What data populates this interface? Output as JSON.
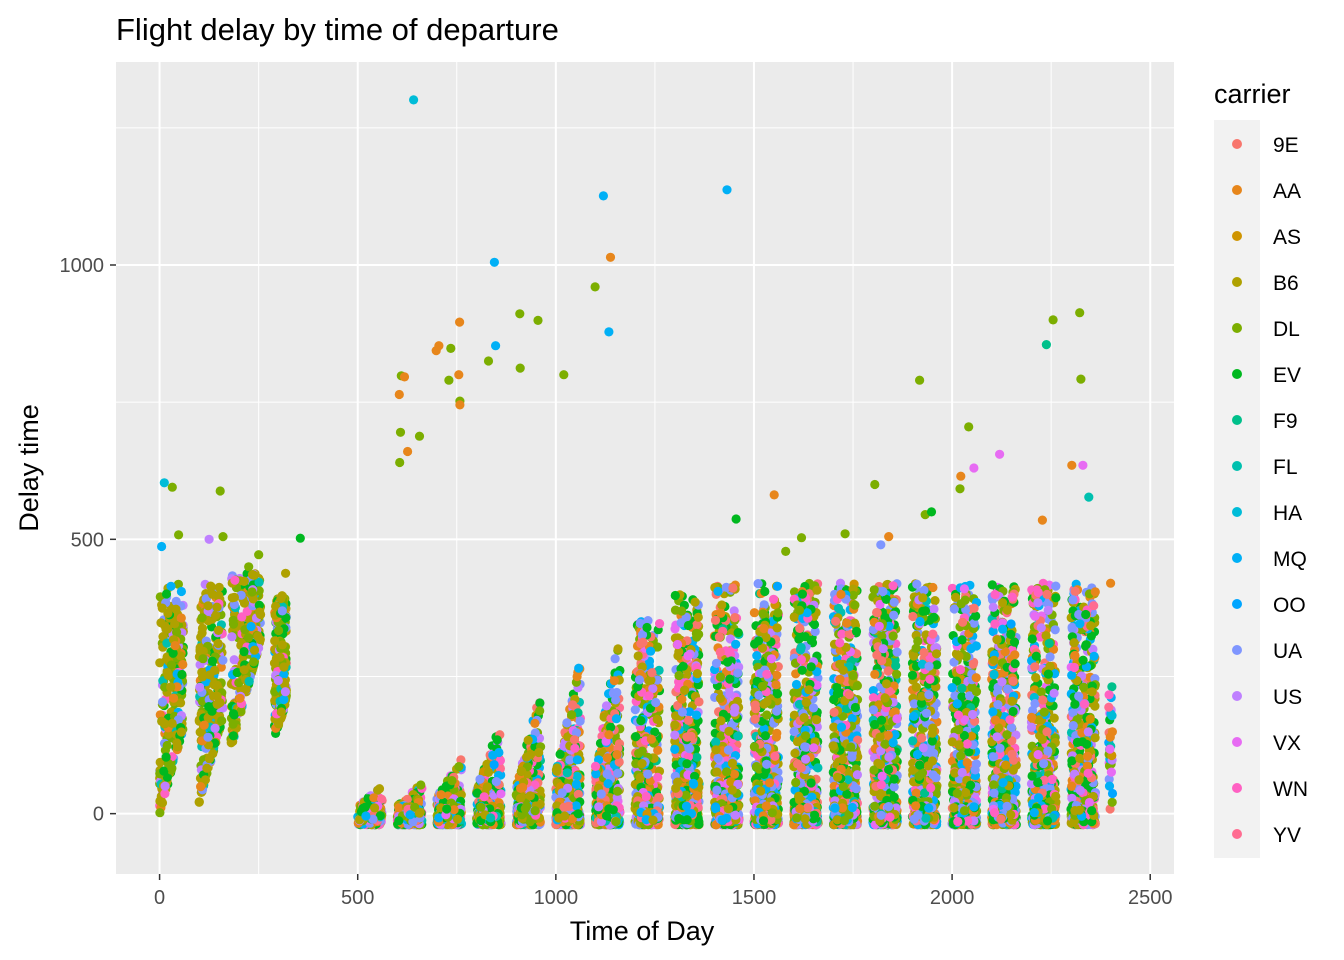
{
  "chart_data": {
    "type": "scatter",
    "title": "Flight delay by time of departure",
    "xlabel": "Time of Day",
    "ylabel": "Delay time",
    "xlim": [
      -110,
      2560
    ],
    "ylim": [
      -110,
      1370
    ],
    "x_ticks": [
      0,
      500,
      1000,
      1500,
      2000,
      2500
    ],
    "y_ticks": [
      0,
      500,
      1000
    ],
    "grid": true,
    "legend": {
      "title": "carrier",
      "placement": "right",
      "entries": [
        "9E",
        "AA",
        "AS",
        "B6",
        "DL",
        "EV",
        "F9",
        "FL",
        "HA",
        "MQ",
        "OO",
        "UA",
        "US",
        "VX",
        "WN",
        "YV"
      ]
    },
    "colors": {
      "9E": "#F8766D",
      "AA": "#E7861B",
      "AS": "#CF9400",
      "B6": "#AFA100",
      "DL": "#7CAE00",
      "EV": "#00B81F",
      "F9": "#00C08B",
      "FL": "#00C0AF",
      "HA": "#00BCD8",
      "MQ": "#00B0F6",
      "OO": "#00A5FF",
      "UA": "#7F96FF",
      "US": "#BF80FF",
      "VX": "#E76BF3",
      "WN": "#FF61C3",
      "YV": "#FF6C91"
    },
    "outliers": [
      {
        "x": 641,
        "y": 1301,
        "carrier": "HA"
      },
      {
        "x": 1120,
        "y": 1126,
        "carrier": "MQ"
      },
      {
        "x": 1432,
        "y": 1137,
        "carrier": "MQ"
      },
      {
        "x": 845,
        "y": 1005,
        "carrier": "MQ"
      },
      {
        "x": 1138,
        "y": 1014,
        "carrier": "AA"
      },
      {
        "x": 1099,
        "y": 960,
        "carrier": "DL"
      },
      {
        "x": 909,
        "y": 911,
        "carrier": "DL"
      },
      {
        "x": 955,
        "y": 899,
        "carrier": "DL"
      },
      {
        "x": 757,
        "y": 896,
        "carrier": "AA"
      },
      {
        "x": 848,
        "y": 853,
        "carrier": "MQ"
      },
      {
        "x": 1134,
        "y": 878,
        "carrier": "MQ"
      },
      {
        "x": 705,
        "y": 853,
        "carrier": "AA"
      },
      {
        "x": 698,
        "y": 844,
        "carrier": "AA"
      },
      {
        "x": 735,
        "y": 848,
        "carrier": "DL"
      },
      {
        "x": 830,
        "y": 825,
        "carrier": "DL"
      },
      {
        "x": 910,
        "y": 812,
        "carrier": "DL"
      },
      {
        "x": 1020,
        "y": 800,
        "carrier": "DL"
      },
      {
        "x": 610,
        "y": 798,
        "carrier": "DL"
      },
      {
        "x": 618,
        "y": 796,
        "carrier": "AA"
      },
      {
        "x": 755,
        "y": 800,
        "carrier": "AA"
      },
      {
        "x": 730,
        "y": 790,
        "carrier": "DL"
      },
      {
        "x": 605,
        "y": 764,
        "carrier": "AA"
      },
      {
        "x": 758,
        "y": 752,
        "carrier": "DL"
      },
      {
        "x": 758,
        "y": 745,
        "carrier": "AA"
      },
      {
        "x": 608,
        "y": 695,
        "carrier": "DL"
      },
      {
        "x": 656,
        "y": 688,
        "carrier": "DL"
      },
      {
        "x": 626,
        "y": 660,
        "carrier": "AA"
      },
      {
        "x": 606,
        "y": 640,
        "carrier": "DL"
      },
      {
        "x": 1455,
        "y": 537,
        "carrier": "EV"
      },
      {
        "x": 1551,
        "y": 581,
        "carrier": "AA"
      },
      {
        "x": 1805,
        "y": 600,
        "carrier": "DL"
      },
      {
        "x": 1918,
        "y": 790,
        "carrier": "DL"
      },
      {
        "x": 2042,
        "y": 705,
        "carrier": "DL"
      },
      {
        "x": 2055,
        "y": 630,
        "carrier": "VX"
      },
      {
        "x": 2120,
        "y": 655,
        "carrier": "VX"
      },
      {
        "x": 2022,
        "y": 615,
        "carrier": "AA"
      },
      {
        "x": 2020,
        "y": 592,
        "carrier": "DL"
      },
      {
        "x": 1932,
        "y": 545,
        "carrier": "DL"
      },
      {
        "x": 1948,
        "y": 550,
        "carrier": "EV"
      },
      {
        "x": 2238,
        "y": 855,
        "carrier": "F9"
      },
      {
        "x": 2255,
        "y": 900,
        "carrier": "DL"
      },
      {
        "x": 2322,
        "y": 913,
        "carrier": "DL"
      },
      {
        "x": 2325,
        "y": 792,
        "carrier": "DL"
      },
      {
        "x": 2302,
        "y": 635,
        "carrier": "AA"
      },
      {
        "x": 2330,
        "y": 635,
        "carrier": "VX"
      },
      {
        "x": 2345,
        "y": 577,
        "carrier": "FL"
      },
      {
        "x": 2228,
        "y": 535,
        "carrier": "AA"
      },
      {
        "x": 2400,
        "y": 420,
        "carrier": "AA"
      },
      {
        "x": 1620,
        "y": 503,
        "carrier": "DL"
      },
      {
        "x": 1730,
        "y": 510,
        "carrier": "DL"
      },
      {
        "x": 1840,
        "y": 505,
        "carrier": "AA"
      },
      {
        "x": 1820,
        "y": 490,
        "carrier": "UA"
      },
      {
        "x": 1580,
        "y": 478,
        "carrier": "DL"
      },
      {
        "x": 12,
        "y": 603,
        "carrier": "HA"
      },
      {
        "x": 32,
        "y": 595,
        "carrier": "DL"
      },
      {
        "x": 153,
        "y": 588,
        "carrier": "DL"
      },
      {
        "x": 5,
        "y": 487,
        "carrier": "MQ"
      },
      {
        "x": 48,
        "y": 508,
        "carrier": "DL"
      },
      {
        "x": 125,
        "y": 500,
        "carrier": "US"
      },
      {
        "x": 160,
        "y": 505,
        "carrier": "DL"
      },
      {
        "x": 250,
        "y": 472,
        "carrier": "DL"
      },
      {
        "x": 355,
        "y": 502,
        "carrier": "EV"
      },
      {
        "x": 318,
        "y": 438,
        "carrier": "B6"
      },
      {
        "x": 225,
        "y": 450,
        "carrier": "DL"
      }
    ]
  }
}
